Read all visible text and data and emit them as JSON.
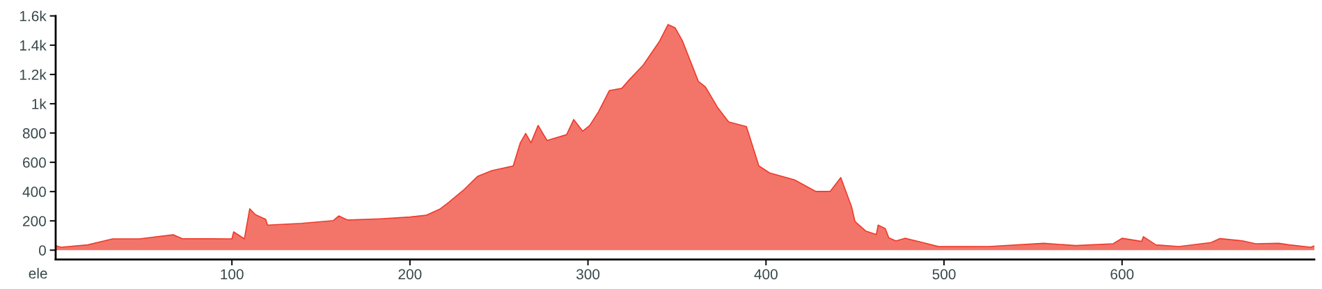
{
  "chart_data": {
    "type": "area",
    "ylabel": "ele",
    "x": [
      1,
      4,
      19,
      33,
      48,
      67,
      72,
      100,
      101,
      107,
      110,
      113,
      119,
      120,
      139,
      157,
      160,
      165,
      183,
      200,
      209,
      217,
      222,
      230,
      238,
      246,
      258,
      262,
      265,
      268,
      272,
      277,
      288,
      292,
      297,
      301,
      306,
      312,
      319,
      323,
      331,
      340,
      345,
      349,
      353,
      362,
      366,
      373,
      379,
      389,
      396,
      402,
      416,
      428,
      436,
      442,
      448,
      450,
      456,
      462,
      463,
      467,
      469,
      473,
      478,
      488,
      497,
      514,
      525,
      556,
      574,
      595,
      600,
      611,
      612,
      619,
      632,
      650,
      655,
      668,
      675,
      688,
      694,
      706,
      708
    ],
    "series": [
      {
        "color": "#ee3b2b",
        "values": [
          31,
          20,
          36,
          77,
          77,
          105,
          79,
          77,
          125,
          77,
          282,
          244,
          210,
          171,
          183,
          202,
          234,
          206,
          214,
          226,
          238,
          282,
          329,
          409,
          504,
          543,
          575,
          733,
          797,
          733,
          852,
          749,
          789,
          892,
          813,
          852,
          947,
          1090,
          1105,
          1161,
          1264,
          1423,
          1541,
          1518,
          1431,
          1153,
          1114,
          971,
          876,
          844,
          575,
          528,
          480,
          401,
          401,
          496,
          298,
          195,
          131,
          107,
          171,
          147,
          84,
          63,
          81,
          52,
          24,
          24,
          25,
          47,
          31,
          44,
          81,
          60,
          92,
          36,
          25,
          52,
          79,
          63,
          44,
          47,
          36,
          20,
          29
        ]
      }
    ],
    "xlim": [
      1,
      708
    ],
    "xticks": [
      100,
      200,
      300,
      400,
      500,
      600
    ],
    "ylim": [
      -64,
      1600
    ],
    "yticks": [
      0,
      200,
      400,
      600,
      800,
      {
        "value": 1000,
        "label": "1k"
      },
      {
        "value": 1200,
        "label": "1.2k"
      },
      {
        "value": 1400,
        "label": "1.4k"
      },
      {
        "value": 1600,
        "label": "1.6k"
      }
    ],
    "grid": false,
    "legend": false
  }
}
